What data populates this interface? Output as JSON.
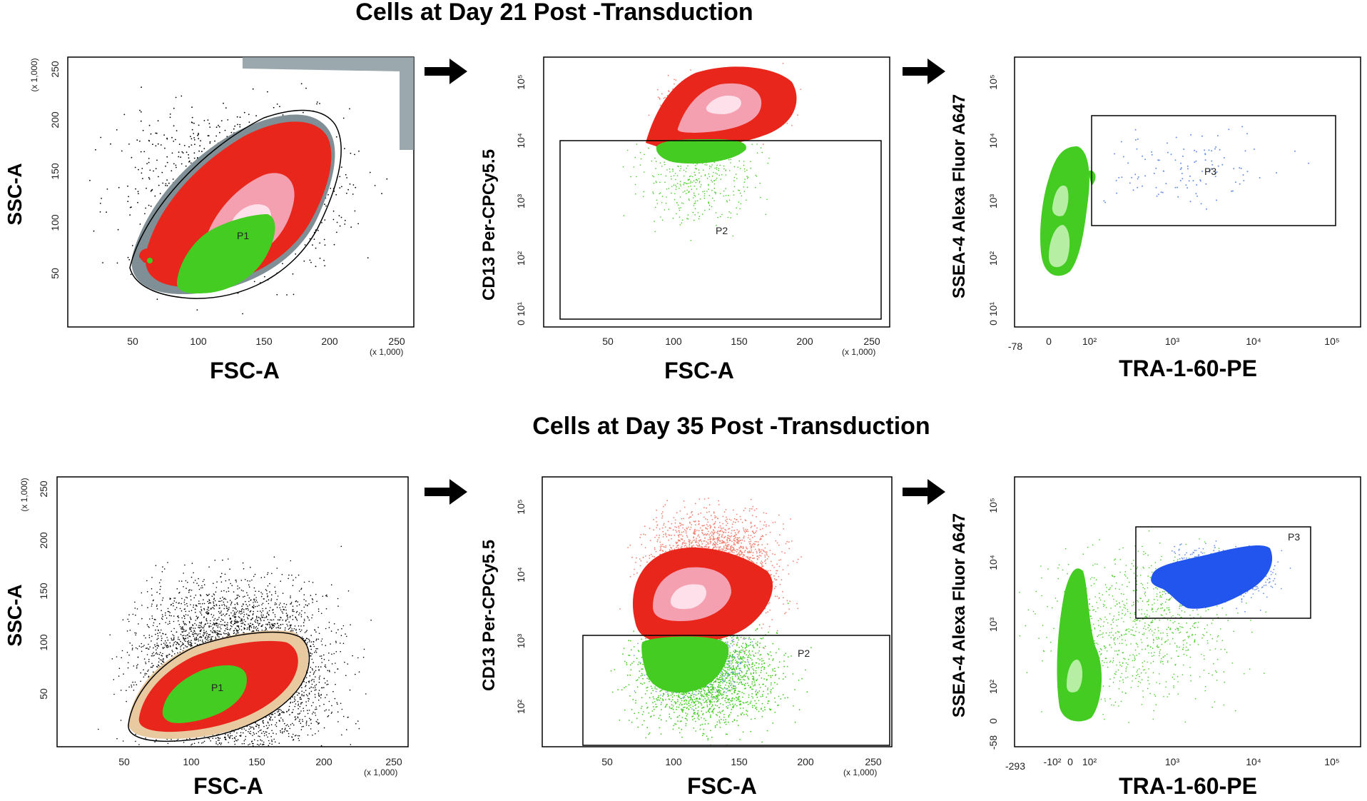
{
  "titles": {
    "day21": "Cells at Day 21 Post -Transduction",
    "day35": "Cells at Day 35 Post -Transduction"
  },
  "labels": {
    "fsc": "FSC-A",
    "ssc": "SSC-A",
    "cd13": "CD13 Per-CPCy5.5",
    "ssea4": "SSEA-4 Alexa Fluor A647",
    "tra": "TRA-1-60-PE",
    "x1000": "(x 1,000)"
  },
  "gates": {
    "p1": "P1",
    "p2": "P2",
    "p3": "P3"
  },
  "ticks": {
    "linear_x": [
      "50",
      "100",
      "150",
      "200",
      "250"
    ],
    "linear_y": [
      "50",
      "100",
      "150",
      "200",
      "250"
    ],
    "log_y": [
      "0",
      "10¹",
      "10²",
      "10³",
      "10⁴",
      "10⁵"
    ],
    "log_x": [
      "0",
      "10²",
      "10³",
      "10⁴",
      "10⁵"
    ],
    "tra_row1_min": "-78",
    "tra_row2_min": "-293",
    "tra_row2_neg": "-10²",
    "ssea_row2_min": "-58"
  },
  "colors": {
    "high_density": "#fde0ea",
    "mid_density": "#f4a0b0",
    "low_density": "#e8261b",
    "p1_gate_population": "#44cc22",
    "p3_gate_population": "#2255ee",
    "outlier_dots": "#000000",
    "gate_outline": "#000000"
  },
  "chart_data": [
    {
      "type": "scatter",
      "panel": "day21-fsc-ssc",
      "xlabel": "FSC-A",
      "ylabel": "SSC-A",
      "xlim": [
        0,
        262
      ],
      "ylim": [
        0,
        262
      ],
      "x_unit_note": "(x 1,000)",
      "gates": [
        "P1"
      ]
    },
    {
      "type": "scatter",
      "panel": "day21-fsc-cd13",
      "xlabel": "FSC-A",
      "ylabel": "CD13 Per-CPCy5.5",
      "xlim": [
        0,
        262
      ],
      "yscale": "log",
      "gates": [
        "P2"
      ]
    },
    {
      "type": "scatter",
      "panel": "day21-tra-ssea4",
      "xlabel": "TRA-1-60-PE",
      "ylabel": "SSEA-4 Alexa Fluor A647",
      "xscale": "log",
      "yscale": "log",
      "gates": [
        "P3"
      ]
    },
    {
      "type": "scatter",
      "panel": "day35-fsc-ssc",
      "xlabel": "FSC-A",
      "ylabel": "SSC-A",
      "xlim": [
        0,
        262
      ],
      "ylim": [
        0,
        262
      ],
      "x_unit_note": "(x 1,000)",
      "gates": [
        "P1"
      ]
    },
    {
      "type": "scatter",
      "panel": "day35-fsc-cd13",
      "xlabel": "FSC-A",
      "ylabel": "CD13 Per-CPCy5.5",
      "xlim": [
        0,
        262
      ],
      "yscale": "log",
      "gates": [
        "P2"
      ]
    },
    {
      "type": "scatter",
      "panel": "day35-tra-ssea4",
      "xlabel": "TRA-1-60-PE",
      "ylabel": "SSEA-4 Alexa Fluor A647",
      "xscale": "log",
      "yscale": "log",
      "gates": [
        "P3"
      ]
    }
  ]
}
